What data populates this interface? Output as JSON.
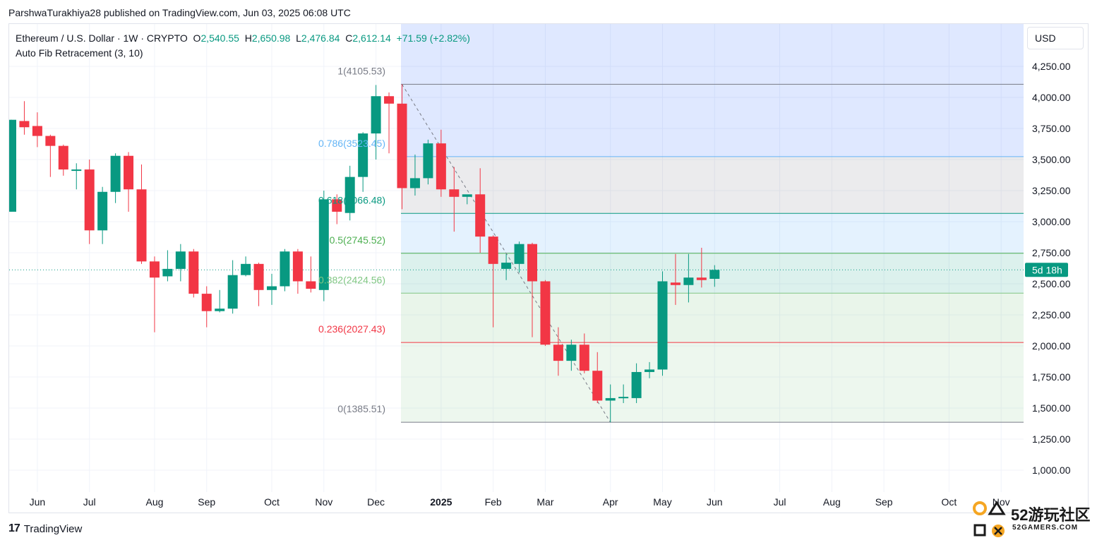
{
  "header": {
    "published": "ParshwaTurakhiya28 published on TradingView.com, Jun 03, 2025 06:08 UTC"
  },
  "legend": {
    "symbol": "Ethereum / U.S. Dollar · 1W · CRYPTO",
    "o_label": "O",
    "o": "2,540.55",
    "h_label": "H",
    "h": "2,650.98",
    "l_label": "L",
    "l": "2,476.84",
    "c_label": "C",
    "c": "2,612.14",
    "change": "+71.59 (+2.82%)",
    "indicator": "Auto Fib Retracement (3, 10)"
  },
  "currency": "USD",
  "countdown": "5d 18h",
  "footer": {
    "brand": "TradingView"
  },
  "watermark": {
    "main": "52游玩社区",
    "sub": "52GAMERS.COM"
  },
  "colors": {
    "up": "#089981",
    "down": "#f23645"
  },
  "chart_data": {
    "type": "candlestick",
    "title": "Ethereum / U.S. Dollar · 1W · CRYPTO",
    "ylim": [
      900,
      4450
    ],
    "y_ticks": [
      1000,
      1250,
      1500,
      1750,
      2000,
      2250,
      2500,
      2750,
      3000,
      3250,
      3500,
      3750,
      4000,
      4250
    ],
    "y_tick_labels": [
      "1,000.00",
      "1,250.00",
      "1,500.00",
      "1,750.00",
      "2,000.00",
      "2,250.00",
      "2,500.00",
      "2,750.00",
      "3,000.00",
      "3,250.00",
      "3,500.00",
      "3,750.00",
      "4,000.00",
      "4,250.00"
    ],
    "x_labels": [
      {
        "i": 2,
        "label": "Jun"
      },
      {
        "i": 6,
        "label": "Jul"
      },
      {
        "i": 11,
        "label": "Aug"
      },
      {
        "i": 15,
        "label": "Sep"
      },
      {
        "i": 20,
        "label": "Oct"
      },
      {
        "i": 24,
        "label": "Nov"
      },
      {
        "i": 28,
        "label": "Dec"
      },
      {
        "i": 33,
        "label": "2025"
      },
      {
        "i": 37,
        "label": "Feb"
      },
      {
        "i": 41,
        "label": "Mar"
      },
      {
        "i": 46,
        "label": "Apr"
      },
      {
        "i": 50,
        "label": "May"
      },
      {
        "i": 54,
        "label": "Jun"
      },
      {
        "i": 59,
        "label": "Jul"
      },
      {
        "i": 63,
        "label": "Aug"
      },
      {
        "i": 67,
        "label": "Sep"
      },
      {
        "i": 72,
        "label": "Oct"
      },
      {
        "i": 76,
        "label": "Nov"
      }
    ],
    "candles": [
      {
        "o": 3080,
        "h": 3820,
        "l": 3080,
        "c": 3820
      },
      {
        "o": 3810,
        "h": 3970,
        "l": 3700,
        "c": 3760
      },
      {
        "o": 3770,
        "h": 3880,
        "l": 3600,
        "c": 3690
      },
      {
        "o": 3690,
        "h": 3700,
        "l": 3360,
        "c": 3610
      },
      {
        "o": 3610,
        "h": 3620,
        "l": 3370,
        "c": 3420
      },
      {
        "o": 3420,
        "h": 3470,
        "l": 3260,
        "c": 3420
      },
      {
        "o": 3420,
        "h": 3500,
        "l": 2820,
        "c": 2930
      },
      {
        "o": 2930,
        "h": 3280,
        "l": 2820,
        "c": 3240
      },
      {
        "o": 3240,
        "h": 3550,
        "l": 3150,
        "c": 3530
      },
      {
        "o": 3530,
        "h": 3560,
        "l": 3080,
        "c": 3260
      },
      {
        "o": 3260,
        "h": 3460,
        "l": 2660,
        "c": 2680
      },
      {
        "o": 2680,
        "h": 2720,
        "l": 2110,
        "c": 2550
      },
      {
        "o": 2560,
        "h": 2770,
        "l": 2520,
        "c": 2620
      },
      {
        "o": 2620,
        "h": 2820,
        "l": 2520,
        "c": 2760
      },
      {
        "o": 2760,
        "h": 2780,
        "l": 2390,
        "c": 2420
      },
      {
        "o": 2420,
        "h": 2480,
        "l": 2150,
        "c": 2280
      },
      {
        "o": 2280,
        "h": 2450,
        "l": 2270,
        "c": 2300
      },
      {
        "o": 2300,
        "h": 2690,
        "l": 2260,
        "c": 2570
      },
      {
        "o": 2570,
        "h": 2720,
        "l": 2560,
        "c": 2660
      },
      {
        "o": 2660,
        "h": 2670,
        "l": 2320,
        "c": 2450
      },
      {
        "o": 2450,
        "h": 2580,
        "l": 2330,
        "c": 2480
      },
      {
        "o": 2480,
        "h": 2780,
        "l": 2440,
        "c": 2760
      },
      {
        "o": 2760,
        "h": 2780,
        "l": 2420,
        "c": 2520
      },
      {
        "o": 2520,
        "h": 2720,
        "l": 2430,
        "c": 2460
      },
      {
        "o": 2450,
        "h": 3250,
        "l": 2360,
        "c": 3180
      },
      {
        "o": 3180,
        "h": 3220,
        "l": 2980,
        "c": 3080
      },
      {
        "o": 3070,
        "h": 3450,
        "l": 3010,
        "c": 3360
      },
      {
        "o": 3360,
        "h": 3720,
        "l": 3240,
        "c": 3710
      },
      {
        "o": 3710,
        "h": 4100,
        "l": 3500,
        "c": 4010
      },
      {
        "o": 4010,
        "h": 4040,
        "l": 3550,
        "c": 3950
      },
      {
        "o": 3950,
        "h": 4105,
        "l": 3100,
        "c": 3270
      },
      {
        "o": 3270,
        "h": 3540,
        "l": 3210,
        "c": 3350
      },
      {
        "o": 3350,
        "h": 3660,
        "l": 3300,
        "c": 3630
      },
      {
        "o": 3630,
        "h": 3740,
        "l": 3200,
        "c": 3260
      },
      {
        "o": 3260,
        "h": 3440,
        "l": 2920,
        "c": 3200
      },
      {
        "o": 3200,
        "h": 3210,
        "l": 3140,
        "c": 3220
      },
      {
        "o": 3220,
        "h": 3430,
        "l": 2750,
        "c": 2880
      },
      {
        "o": 2880,
        "h": 2890,
        "l": 2150,
        "c": 2660
      },
      {
        "o": 2620,
        "h": 2740,
        "l": 2530,
        "c": 2670
      },
      {
        "o": 2660,
        "h": 2840,
        "l": 2590,
        "c": 2820
      },
      {
        "o": 2820,
        "h": 2830,
        "l": 2070,
        "c": 2520
      },
      {
        "o": 2520,
        "h": 2530,
        "l": 2000,
        "c": 2010
      },
      {
        "o": 2010,
        "h": 2150,
        "l": 1760,
        "c": 1880
      },
      {
        "o": 1880,
        "h": 2050,
        "l": 1800,
        "c": 2010
      },
      {
        "o": 2010,
        "h": 2100,
        "l": 1780,
        "c": 1800
      },
      {
        "o": 1800,
        "h": 1950,
        "l": 1540,
        "c": 1560
      },
      {
        "o": 1560,
        "h": 1690,
        "l": 1385,
        "c": 1580
      },
      {
        "o": 1580,
        "h": 1690,
        "l": 1540,
        "c": 1590
      },
      {
        "o": 1580,
        "h": 1860,
        "l": 1540,
        "c": 1790
      },
      {
        "o": 1790,
        "h": 1870,
        "l": 1740,
        "c": 1810
      },
      {
        "o": 1810,
        "h": 2600,
        "l": 1760,
        "c": 2520
      },
      {
        "o": 2510,
        "h": 2740,
        "l": 2330,
        "c": 2490
      },
      {
        "o": 2490,
        "h": 2740,
        "l": 2350,
        "c": 2550
      },
      {
        "o": 2550,
        "h": 2790,
        "l": 2470,
        "c": 2530
      },
      {
        "o": 2540,
        "h": 2650,
        "l": 2476,
        "c": 2612
      }
    ],
    "last_price": 2612.14,
    "fib": {
      "high": 4105.53,
      "low": 1385.51,
      "levels": [
        {
          "ratio": 1,
          "price": 4105.53,
          "label": "1(4105.53)",
          "color": "#787b86",
          "fill": "rgba(41,98,255,0.15)"
        },
        {
          "ratio": 0.786,
          "price": 3523.45,
          "label": "0.786(3523.45)",
          "color": "#64b5f6",
          "fill": "rgba(120,123,134,0.15)"
        },
        {
          "ratio": 0.618,
          "price": 3066.48,
          "label": "0.618(3066.48)",
          "color": "#089981",
          "fill": "rgba(33,150,243,0.12)"
        },
        {
          "ratio": 0.5,
          "price": 2745.52,
          "label": "0.5(2745.52)",
          "color": "#4caf50",
          "fill": "rgba(8,153,129,0.14)"
        },
        {
          "ratio": 0.382,
          "price": 2424.56,
          "label": "0.382(2424.56)",
          "color": "#81c784",
          "fill": "rgba(76,175,80,0.12)"
        },
        {
          "ratio": 0.236,
          "price": 2027.43,
          "label": "0.236(2027.43)",
          "color": "#f23645",
          "fill": "rgba(129,199,132,0.14)"
        },
        {
          "ratio": 0,
          "price": 1385.51,
          "label": "0(1385.51)",
          "color": "#787b86",
          "fill": "rgba(242,54,69,0.15)"
        }
      ]
    },
    "grid": true,
    "legend_position": "top-left"
  }
}
